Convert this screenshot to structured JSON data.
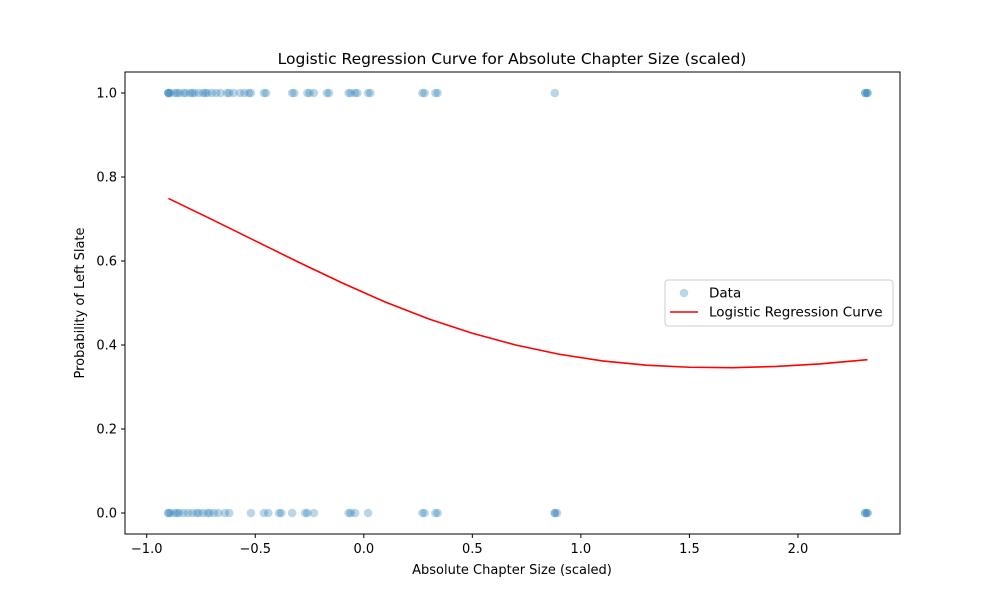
{
  "chart_data": {
    "type": "scatter",
    "title": "Logistic Regression Curve for Absolute Chapter Size (scaled)",
    "xlabel": "Absolute Chapter Size (scaled)",
    "ylabel": "Probability of Left Slate",
    "xlim": [
      -1.1,
      2.47
    ],
    "ylim": [
      -0.05,
      1.05
    ],
    "x_ticks": [
      -1.0,
      -0.5,
      0.0,
      0.5,
      1.0,
      1.5,
      2.0
    ],
    "x_tick_labels": [
      "−1.0",
      "−0.5",
      "0.0",
      "0.5",
      "1.0",
      "1.5",
      "2.0"
    ],
    "y_ticks": [
      0.0,
      0.2,
      0.4,
      0.6,
      0.8,
      1.0
    ],
    "y_tick_labels": [
      "0.0",
      "0.2",
      "0.4",
      "0.6",
      "0.8",
      "1.0"
    ],
    "grid": false,
    "legend_position": "center-right",
    "series": [
      {
        "name": "Data",
        "kind": "scatter",
        "color": "#1f77b4",
        "opacity": 0.3,
        "points": [
          [
            -0.9,
            1
          ],
          [
            -0.9,
            1
          ],
          [
            -0.9,
            1
          ],
          [
            -0.89,
            1
          ],
          [
            -0.87,
            1
          ],
          [
            -0.86,
            1
          ],
          [
            -0.85,
            1
          ],
          [
            -0.83,
            1
          ],
          [
            -0.82,
            1
          ],
          [
            -0.8,
            1
          ],
          [
            -0.79,
            1
          ],
          [
            -0.78,
            1
          ],
          [
            -0.76,
            1
          ],
          [
            -0.74,
            1
          ],
          [
            -0.73,
            1
          ],
          [
            -0.72,
            1
          ],
          [
            -0.7,
            1
          ],
          [
            -0.68,
            1
          ],
          [
            -0.66,
            1
          ],
          [
            -0.63,
            1
          ],
          [
            -0.62,
            1
          ],
          [
            -0.6,
            1
          ],
          [
            -0.57,
            1
          ],
          [
            -0.55,
            1
          ],
          [
            -0.53,
            1
          ],
          [
            -0.52,
            1
          ],
          [
            -0.46,
            1
          ],
          [
            -0.45,
            1
          ],
          [
            -0.33,
            1
          ],
          [
            -0.32,
            1
          ],
          [
            -0.26,
            1
          ],
          [
            -0.25,
            1
          ],
          [
            -0.23,
            1
          ],
          [
            -0.17,
            1
          ],
          [
            -0.16,
            1
          ],
          [
            -0.07,
            1
          ],
          [
            -0.06,
            1
          ],
          [
            -0.04,
            1
          ],
          [
            -0.03,
            1
          ],
          [
            0.02,
            1
          ],
          [
            0.03,
            1
          ],
          [
            0.27,
            1
          ],
          [
            0.28,
            1
          ],
          [
            0.33,
            1
          ],
          [
            0.34,
            1
          ],
          [
            0.88,
            1
          ],
          [
            2.31,
            1
          ],
          [
            2.31,
            1
          ],
          [
            2.32,
            1
          ],
          [
            2.32,
            1
          ],
          [
            -0.9,
            0
          ],
          [
            -0.9,
            0
          ],
          [
            -0.89,
            0
          ],
          [
            -0.87,
            0
          ],
          [
            -0.86,
            0
          ],
          [
            -0.85,
            0
          ],
          [
            -0.83,
            0
          ],
          [
            -0.81,
            0
          ],
          [
            -0.79,
            0
          ],
          [
            -0.77,
            0
          ],
          [
            -0.76,
            0
          ],
          [
            -0.74,
            0
          ],
          [
            -0.72,
            0
          ],
          [
            -0.71,
            0
          ],
          [
            -0.69,
            0
          ],
          [
            -0.67,
            0
          ],
          [
            -0.64,
            0
          ],
          [
            -0.62,
            0
          ],
          [
            -0.52,
            0
          ],
          [
            -0.46,
            0
          ],
          [
            -0.44,
            0
          ],
          [
            -0.39,
            0
          ],
          [
            -0.38,
            0
          ],
          [
            -0.33,
            0
          ],
          [
            -0.27,
            0
          ],
          [
            -0.26,
            0
          ],
          [
            -0.23,
            0
          ],
          [
            -0.07,
            0
          ],
          [
            -0.06,
            0
          ],
          [
            -0.04,
            0
          ],
          [
            0.02,
            0
          ],
          [
            0.27,
            0
          ],
          [
            0.28,
            0
          ],
          [
            0.33,
            0
          ],
          [
            0.34,
            0
          ],
          [
            0.88,
            0
          ],
          [
            0.88,
            0
          ],
          [
            0.89,
            0
          ],
          [
            2.31,
            0
          ],
          [
            2.31,
            0
          ],
          [
            2.32,
            0
          ],
          [
            2.32,
            0
          ]
        ]
      },
      {
        "name": "Logistic Regression Curve",
        "kind": "line",
        "color": "#ff0000",
        "x": [
          -0.9,
          -0.7,
          -0.5,
          -0.3,
          -0.1,
          0.1,
          0.3,
          0.5,
          0.7,
          0.9,
          1.1,
          1.3,
          1.5,
          1.7,
          1.9,
          2.1,
          2.32
        ],
        "y": [
          0.749,
          0.699,
          0.648,
          0.597,
          0.548,
          0.502,
          0.462,
          0.428,
          0.4,
          0.378,
          0.362,
          0.352,
          0.347,
          0.346,
          0.349,
          0.355,
          0.365
        ]
      }
    ]
  }
}
